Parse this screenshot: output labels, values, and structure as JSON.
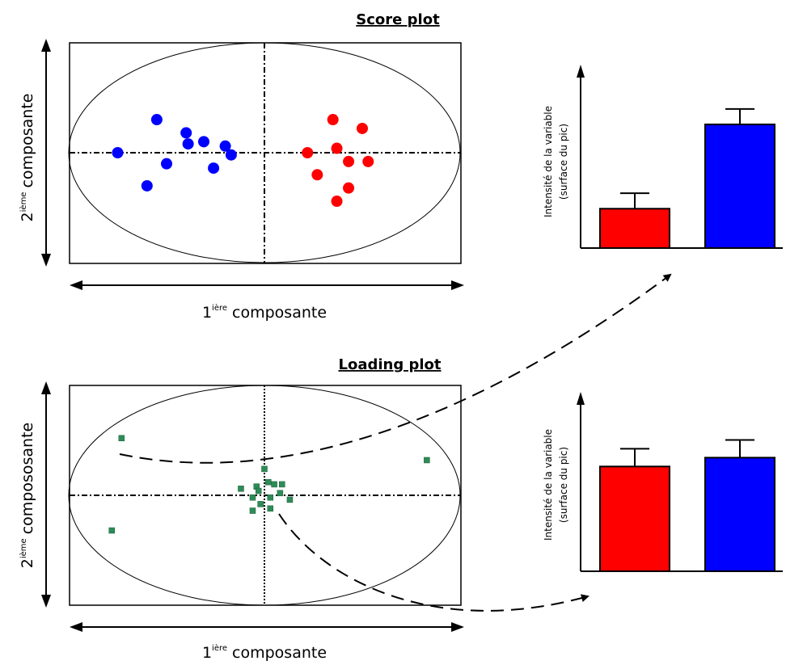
{
  "score_plot": {
    "title": "Score plot",
    "x_axis_label": {
      "base": "1",
      "sup": "ière",
      "rest": "composante"
    },
    "y_axis_label": {
      "base": "2",
      "sup": "ième",
      "rest": "composante"
    }
  },
  "loading_plot": {
    "title": "Loading plot",
    "x_axis_label": {
      "base": "1",
      "sup": "ière",
      "rest": "composante"
    },
    "y_axis_label": {
      "base": "2",
      "sup": "ième",
      "rest": "compososante"
    }
  },
  "bar_chart_top": {
    "ylabel_line1": "Intensité de la variable",
    "ylabel_line2": "(surface du pic)"
  },
  "bar_chart_bottom": {
    "ylabel_line1": "Intensité de la variable",
    "ylabel_line2": "(surface du pic)"
  },
  "colors": {
    "group_red": "#ff0000",
    "group_blue": "#0000ff",
    "loading_points": "#2e8b57"
  },
  "chart_data": [
    {
      "type": "scatter",
      "title": "Score plot",
      "xlabel": "1ière composante",
      "ylabel": "2ième composante",
      "series": [
        {
          "color": "#0000ff",
          "points": [
            [
              -5.5,
              1.5
            ],
            [
              -4.0,
              0.9
            ],
            [
              -3.9,
              0.4
            ],
            [
              -3.1,
              0.5
            ],
            [
              -2.0,
              0.3
            ],
            [
              -1.7,
              -0.1
            ],
            [
              -2.6,
              -0.7
            ],
            [
              -5.0,
              -0.5
            ],
            [
              -6.0,
              -1.5
            ],
            [
              -7.5,
              0.0
            ]
          ]
        },
        {
          "color": "#ff0000",
          "points": [
            [
              3.5,
              1.5
            ],
            [
              5.0,
              1.1
            ],
            [
              3.7,
              0.2
            ],
            [
              2.2,
              0.0
            ],
            [
              4.3,
              -0.4
            ],
            [
              5.3,
              -0.4
            ],
            [
              2.7,
              -1.0
            ],
            [
              4.3,
              -1.6
            ],
            [
              3.7,
              -2.2
            ]
          ]
        }
      ]
    },
    {
      "type": "scatter",
      "title": "Loading plot",
      "xlabel": "1ière composante",
      "ylabel": "2ième compososante",
      "series": [
        {
          "color": "#2e8b57",
          "points": [
            [
              -7.3,
              2.6
            ],
            [
              -7.8,
              -1.6
            ],
            [
              8.3,
              1.6
            ],
            [
              0.0,
              1.2
            ],
            [
              0.2,
              0.6
            ],
            [
              0.5,
              0.5
            ],
            [
              0.9,
              0.5
            ],
            [
              -0.4,
              0.4
            ],
            [
              -1.2,
              0.3
            ],
            [
              -0.3,
              0.2
            ],
            [
              0.8,
              0.1
            ],
            [
              -0.6,
              -0.1
            ],
            [
              0.3,
              -0.1
            ],
            [
              1.3,
              -0.2
            ],
            [
              -0.2,
              -0.4
            ],
            [
              0.3,
              -0.6
            ],
            [
              -0.6,
              -0.7
            ]
          ]
        }
      ]
    },
    {
      "type": "bar",
      "ylabel": "Intensité de la variable\n(surface du pic)",
      "categories": [
        "",
        ""
      ],
      "values": [
        28,
        88
      ],
      "errors": [
        11,
        11
      ],
      "colors": [
        "#ff0000",
        "#0000ff"
      ],
      "ylim": [
        0,
        115
      ]
    },
    {
      "type": "bar",
      "ylabel": "Intensité de la variable\n(surface du pic)",
      "categories": [
        "",
        ""
      ],
      "values": [
        71,
        77
      ],
      "errors": [
        12,
        12
      ],
      "colors": [
        "#ff0000",
        "#0000ff"
      ],
      "ylim": [
        0,
        115
      ]
    }
  ]
}
